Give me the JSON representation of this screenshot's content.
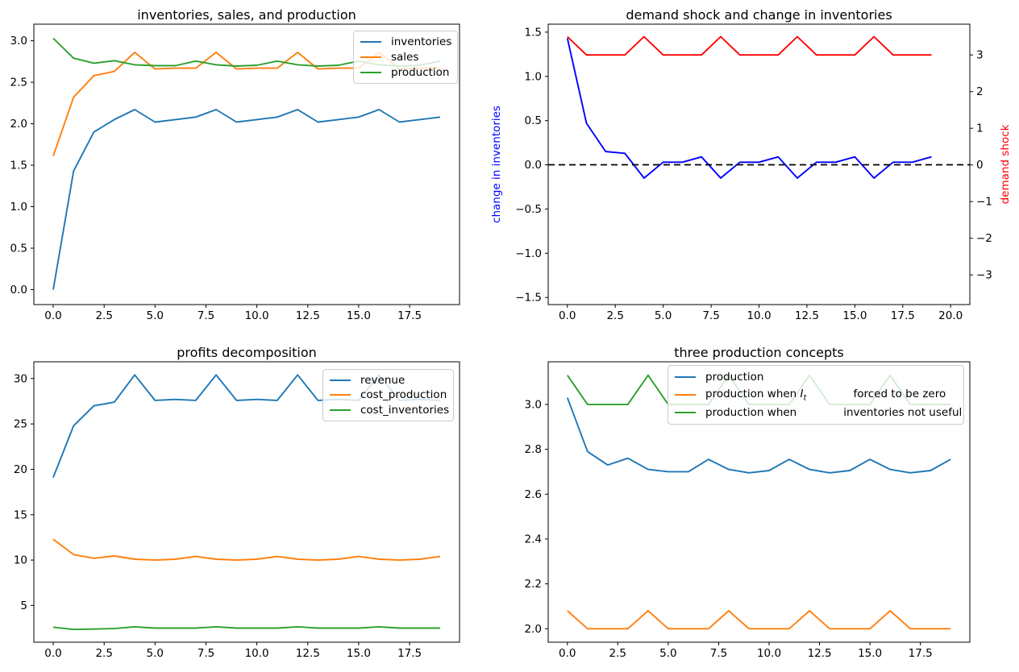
{
  "chart_data": [
    {
      "type": "line",
      "title": "inventories, sales, and production",
      "x": [
        0,
        1,
        2,
        3,
        4,
        5,
        6,
        7,
        8,
        9,
        10,
        11,
        12,
        13,
        14,
        15,
        16,
        17,
        18,
        19
      ],
      "xlim": [
        -0.95,
        19.95
      ],
      "ylim": [
        -0.18,
        3.2
      ],
      "xticks": {
        "values": [
          0,
          2.5,
          5,
          7.5,
          10,
          12.5,
          15,
          17.5
        ],
        "labels": [
          "0.0",
          "2.5",
          "5.0",
          "7.5",
          "10.0",
          "12.5",
          "15.0",
          "17.5"
        ]
      },
      "yticks": {
        "values": [
          0,
          0.5,
          1,
          1.5,
          2,
          2.5,
          3
        ],
        "labels": [
          "0.0",
          "0.5",
          "1.0",
          "1.5",
          "2.0",
          "2.5",
          "3.0"
        ]
      },
      "legend_loc": "upper right",
      "grid": false,
      "series": [
        {
          "id": "inventories",
          "name": "inventories",
          "color": "#1f77b4",
          "values": [
            0.0,
            1.43,
            1.9,
            2.05,
            2.17,
            2.02,
            2.05,
            2.08,
            2.17,
            2.02,
            2.05,
            2.08,
            2.17,
            2.02,
            2.05,
            2.08,
            2.17,
            2.02,
            2.05,
            2.08
          ]
        },
        {
          "id": "sales",
          "name": "sales",
          "color": "#ff7f0e",
          "values": [
            1.61,
            2.32,
            2.58,
            2.63,
            2.86,
            2.66,
            2.67,
            2.67,
            2.86,
            2.66,
            2.67,
            2.67,
            2.86,
            2.66,
            2.67,
            2.67,
            2.86,
            2.66,
            2.67,
            2.67
          ]
        },
        {
          "id": "production",
          "name": "production",
          "color": "#2ca02c",
          "values": [
            3.03,
            2.79,
            2.73,
            2.76,
            2.71,
            2.7,
            2.7,
            2.755,
            2.71,
            2.695,
            2.705,
            2.755,
            2.71,
            2.695,
            2.705,
            2.755,
            2.71,
            2.695,
            2.705,
            2.755
          ]
        }
      ]
    },
    {
      "type": "line",
      "title": "demand shock and change in inventories",
      "ylabel_left": {
        "text": "change in inventories",
        "color": "#0000ff"
      },
      "ylabel_right": {
        "text": "demand shock",
        "color": "#ff0000"
      },
      "x": [
        0,
        1,
        2,
        3,
        4,
        5,
        6,
        7,
        8,
        9,
        10,
        11,
        12,
        13,
        14,
        15,
        16,
        17,
        18,
        19
      ],
      "xlim": [
        -1.0,
        21.0
      ],
      "ylim": [
        -1.58,
        1.59
      ],
      "ylim_right": [
        -3.81,
        3.84
      ],
      "xticks": {
        "values": [
          0,
          2.5,
          5,
          7.5,
          10,
          12.5,
          15,
          17.5,
          20
        ],
        "labels": [
          "0.0",
          "2.5",
          "5.0",
          "7.5",
          "10.0",
          "12.5",
          "15.0",
          "17.5",
          "20.0"
        ]
      },
      "yticks": {
        "values": [
          -1.5,
          -1,
          -0.5,
          0,
          0.5,
          1,
          1.5
        ],
        "labels": [
          "−1.5",
          "−1.0",
          "−0.5",
          "0.0",
          "0.5",
          "1.0",
          "1.5"
        ]
      },
      "yticks_right": {
        "values": [
          3,
          2,
          1,
          0,
          -1,
          -2,
          -3
        ],
        "labels": [
          "3",
          "2",
          "1",
          "0",
          "−1",
          "−2",
          "−3"
        ]
      },
      "hline": {
        "y": 0,
        "color": "#000000",
        "style": "dashed"
      },
      "grid": false,
      "series": [
        {
          "id": "change-in-inventories",
          "name": "change in inventories",
          "color": "#0000ff",
          "axis": "left",
          "values": [
            1.43,
            0.47,
            0.15,
            0.13,
            -0.15,
            0.03,
            0.03,
            0.09,
            -0.15,
            0.03,
            0.03,
            0.09,
            -0.15,
            0.03,
            0.03,
            0.09,
            -0.15,
            0.03,
            0.03,
            0.09
          ]
        },
        {
          "id": "demand-shock",
          "name": "demand shock",
          "color": "#ff0000",
          "axis": "right",
          "values": [
            3.5,
            3,
            3,
            3,
            3.5,
            3,
            3,
            3,
            3.5,
            3,
            3,
            3,
            3.5,
            3,
            3,
            3,
            3.5,
            3,
            3,
            3
          ]
        }
      ]
    },
    {
      "type": "line",
      "title": "profits decomposition",
      "x": [
        0,
        1,
        2,
        3,
        4,
        5,
        6,
        7,
        8,
        9,
        10,
        11,
        12,
        13,
        14,
        15,
        16,
        17,
        18,
        19
      ],
      "xlim": [
        -0.95,
        19.95
      ],
      "ylim": [
        0.95,
        31.85
      ],
      "xticks": {
        "values": [
          0,
          2.5,
          5,
          7.5,
          10,
          12.5,
          15,
          17.5
        ],
        "labels": [
          "0.0",
          "2.5",
          "5.0",
          "7.5",
          "10.0",
          "12.5",
          "15.0",
          "17.5"
        ]
      },
      "yticks": {
        "values": [
          5,
          10,
          15,
          20,
          25,
          30
        ],
        "labels": [
          "5",
          "10",
          "15",
          "20",
          "25",
          "30"
        ]
      },
      "legend_loc": "upper right",
      "grid": false,
      "series": [
        {
          "id": "revenue",
          "name": "revenue",
          "color": "#1f77b4",
          "values": [
            19.1,
            24.8,
            27.0,
            27.4,
            30.4,
            27.6,
            27.7,
            27.6,
            30.4,
            27.6,
            27.7,
            27.6,
            30.4,
            27.6,
            27.7,
            27.6,
            30.4,
            27.6,
            27.7,
            27.6
          ]
        },
        {
          "id": "cost-production",
          "name": "cost_production",
          "color": "#ff7f0e",
          "values": [
            12.3,
            10.6,
            10.2,
            10.45,
            10.1,
            10.0,
            10.1,
            10.4,
            10.1,
            10.0,
            10.1,
            10.4,
            10.1,
            10.0,
            10.1,
            10.4,
            10.1,
            10.0,
            10.1,
            10.4
          ]
        },
        {
          "id": "cost-inventories",
          "name": "cost_inventories",
          "color": "#2ca02c",
          "values": [
            2.6,
            2.35,
            2.4,
            2.45,
            2.65,
            2.5,
            2.5,
            2.5,
            2.65,
            2.5,
            2.5,
            2.5,
            2.65,
            2.5,
            2.5,
            2.5,
            2.65,
            2.5,
            2.5,
            2.5
          ]
        }
      ]
    },
    {
      "type": "line",
      "title": "three production concepts",
      "x": [
        0,
        1,
        2,
        3,
        4,
        5,
        6,
        7,
        8,
        9,
        10,
        11,
        12,
        13,
        14,
        15,
        16,
        17,
        18,
        19
      ],
      "xlim": [
        -0.95,
        19.95
      ],
      "ylim": [
        1.94,
        3.19
      ],
      "xticks": {
        "values": [
          0,
          2.5,
          5,
          7.5,
          10,
          12.5,
          15,
          17.5
        ],
        "labels": [
          "0.0",
          "2.5",
          "5.0",
          "7.5",
          "10.0",
          "12.5",
          "15.0",
          "17.5"
        ]
      },
      "yticks": {
        "values": [
          2.0,
          2.2,
          2.4,
          2.6,
          2.8,
          3.0
        ],
        "labels": [
          "2.0",
          "2.2",
          "2.4",
          "2.6",
          "2.8",
          "3.0"
        ]
      },
      "legend_loc": "upper center",
      "grid": false,
      "series": [
        {
          "id": "production-3",
          "name": "production",
          "color": "#1f77b4",
          "values": [
            3.03,
            2.79,
            2.73,
            2.76,
            2.71,
            2.7,
            2.7,
            2.755,
            2.71,
            2.695,
            2.705,
            2.755,
            2.71,
            2.695,
            2.705,
            2.755,
            2.71,
            2.695,
            2.705,
            2.755
          ]
        },
        {
          "id": "production-zero-inventories",
          "name": "production when I_t forced to be zero",
          "color": "#ff7f0e",
          "values": [
            2.08,
            2,
            2,
            2,
            2.08,
            2,
            2,
            2,
            2.08,
            2,
            2,
            2,
            2.08,
            2,
            2,
            2,
            2.08,
            2,
            2,
            2
          ]
        },
        {
          "id": "production-inventories-not-useful",
          "name": "production when inventories not useful",
          "color": "#2ca02c",
          "values": [
            3.13,
            3,
            3,
            3,
            3.13,
            3,
            3,
            3,
            3.13,
            3,
            3,
            3,
            3.13,
            3,
            3,
            3,
            3.13,
            3,
            3,
            3
          ]
        }
      ],
      "legend_rows": [
        {
          "pre": "production",
          "math_i": "",
          "math_sub": "",
          "post": ""
        },
        {
          "pre": "production when ",
          "math_i": "I",
          "math_sub": "t",
          "post": "forced to be zero"
        },
        {
          "pre": "production when",
          "math_i": "",
          "math_sub": "",
          "post": "inventories not useful"
        }
      ]
    }
  ]
}
